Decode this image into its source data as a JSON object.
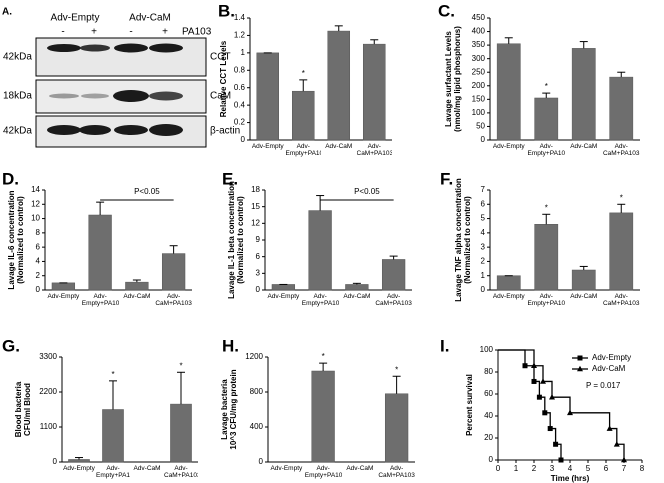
{
  "blot": {
    "panel": "A.",
    "groups": [
      "Adv-Empty",
      "Adv-CaM"
    ],
    "signs": [
      "-",
      "+",
      "-",
      "+"
    ],
    "treatment": "PA103",
    "rows": [
      {
        "size": "42kDa",
        "label": "CCT"
      },
      {
        "size": "18kDa",
        "label": "CaM"
      },
      {
        "size": "42kDa",
        "label": "β-actin"
      }
    ]
  },
  "chart_data": [
    {
      "type": "bar",
      "panel": "B.",
      "ylabel": [
        "Relative CCT Levels"
      ],
      "categories": [
        "Adv-Empty",
        "Adv-Empty+PA103",
        "Adv-CaM",
        "Adv-CaM+PA103"
      ],
      "values": [
        1.0,
        0.56,
        1.25,
        1.1
      ],
      "errors": [
        0,
        0.13,
        0.06,
        0.05
      ],
      "markers": [
        null,
        "*",
        null,
        null
      ],
      "color": "#6e6e6e",
      "ylim": [
        0,
        1.4
      ],
      "yticks": [
        0,
        0.2,
        0.4,
        0.6,
        0.8,
        1,
        1.2,
        1.4
      ]
    },
    {
      "type": "bar",
      "panel": "C.",
      "ylabel": [
        "Lavage surfactant Levels",
        "(nmol/mg lipid phosphorus)"
      ],
      "categories": [
        "Adv-Empty",
        "Adv-Empty+PA103",
        "Adv-CaM",
        "Adv-CaM+PA103"
      ],
      "values": [
        355,
        155,
        338,
        232
      ],
      "errors": [
        22,
        18,
        25,
        18
      ],
      "markers": [
        null,
        "*",
        null,
        null
      ],
      "color": "#6e6e6e",
      "ylim": [
        0,
        450
      ],
      "yticks": [
        0,
        50,
        100,
        150,
        200,
        250,
        300,
        350,
        400,
        450
      ]
    },
    {
      "type": "bar",
      "panel": "D.",
      "ylabel": [
        "Lavage IL-6 concentration",
        "(Normalized to control)"
      ],
      "categories": [
        "Adv-Empty",
        "Adv-Empty+PA103",
        "Adv-CaM",
        "Adv-CaM+PA103"
      ],
      "values": [
        1,
        10.5,
        1.1,
        5.1
      ],
      "errors": [
        0,
        1.8,
        0.3,
        1.1
      ],
      "comparison": {
        "label": "P<0.05",
        "between": [
          "Adv-Empty+PA103",
          "Adv-CaM+PA103"
        ]
      },
      "color": "#6e6e6e",
      "ylim": [
        0,
        14
      ],
      "yticks": [
        0,
        2,
        4,
        6,
        8,
        10,
        12,
        14
      ]
    },
    {
      "type": "bar",
      "panel": "E.",
      "ylabel": [
        "Lavage IL-1 beta concentration",
        "(Normalized to control)"
      ],
      "categories": [
        "Adv-Empty",
        "Adv-Empty+PA103",
        "Adv-CaM",
        "Adv-CaM+PA103"
      ],
      "values": [
        1,
        14.3,
        1,
        5.5
      ],
      "errors": [
        0,
        2.7,
        0.2,
        0.6
      ],
      "comparison": {
        "label": "P<0.05",
        "between": [
          "Adv-Empty+PA103",
          "Adv-CaM+PA103"
        ]
      },
      "color": "#6e6e6e",
      "ylim": [
        0,
        18
      ],
      "yticks": [
        0,
        3,
        6,
        9,
        12,
        15,
        18
      ]
    },
    {
      "type": "bar",
      "panel": "F.",
      "ylabel": [
        "Lavage TNF alpha concentration",
        "(Normalized to control)"
      ],
      "categories": [
        "Adv-Empty",
        "Adv-Empty+PA103",
        "Adv-CaM",
        "Adv-CaM+PA103"
      ],
      "values": [
        1,
        4.6,
        1.4,
        5.4
      ],
      "errors": [
        0,
        0.7,
        0.25,
        0.6
      ],
      "markers": [
        null,
        "*",
        null,
        "*"
      ],
      "color": "#6e6e6e",
      "ylim": [
        0,
        7
      ],
      "yticks": [
        0,
        1,
        2,
        3,
        4,
        5,
        6,
        7
      ]
    },
    {
      "type": "bar",
      "panel": "G.",
      "ylabel": [
        "Blood bacteria",
        "CFU/ml Blood"
      ],
      "categories": [
        "Adv-Empty",
        "Adv-Empty+PA103",
        "Adv-CaM",
        "Adv-CaM+PA103"
      ],
      "values": [
        80,
        1650,
        0,
        1820
      ],
      "errors": [
        60,
        900,
        0,
        1000
      ],
      "markers": [
        null,
        "*",
        null,
        "*"
      ],
      "color": "#6e6e6e",
      "ylim": [
        0,
        3300
      ],
      "yticks": [
        0,
        1100,
        2200,
        3300
      ]
    },
    {
      "type": "bar",
      "panel": "H.",
      "ylabel": [
        "Lavage bacteria",
        "10^3 CFU/mg protein"
      ],
      "categories": [
        "Adv-Empty",
        "Adv-Empty+PA103",
        "Adv-CaM",
        "Adv-CaM+PA103"
      ],
      "values": [
        0,
        1040,
        0,
        780
      ],
      "errors": [
        0,
        90,
        0,
        200
      ],
      "markers": [
        null,
        "*",
        null,
        "*"
      ],
      "color": "#6e6e6e",
      "ylim": [
        0,
        1200
      ],
      "yticks": [
        0,
        400,
        800,
        1200
      ]
    },
    {
      "type": "step",
      "panel": "I.",
      "ylabel": [
        "Percent survival"
      ],
      "xlabel": "Time (hrs)",
      "annotation": "P = 0.017",
      "legend": "upper right",
      "series": [
        {
          "name": "Adv-Empty",
          "color": "#000000",
          "marker": "square",
          "x": [
            0,
            1.5,
            2,
            2.3,
            2.6,
            2.9,
            3.2,
            3.5
          ],
          "values": [
            100,
            85.7,
            71.4,
            57.1,
            42.9,
            28.6,
            14.3,
            0
          ]
        },
        {
          "name": "Adv-CaM",
          "color": "#000000",
          "marker": "triangle",
          "x": [
            0,
            2,
            2.5,
            3,
            4,
            6.2,
            6.6,
            7
          ],
          "values": [
            100,
            85.7,
            71.4,
            57.1,
            42.9,
            28.6,
            14.3,
            0
          ]
        }
      ],
      "xlim": [
        0,
        8
      ],
      "xticks": [
        0,
        1,
        2,
        3,
        4,
        5,
        6,
        7,
        8
      ],
      "ylim": [
        0,
        100
      ],
      "yticks": [
        0,
        20,
        40,
        60,
        80,
        100
      ]
    }
  ]
}
